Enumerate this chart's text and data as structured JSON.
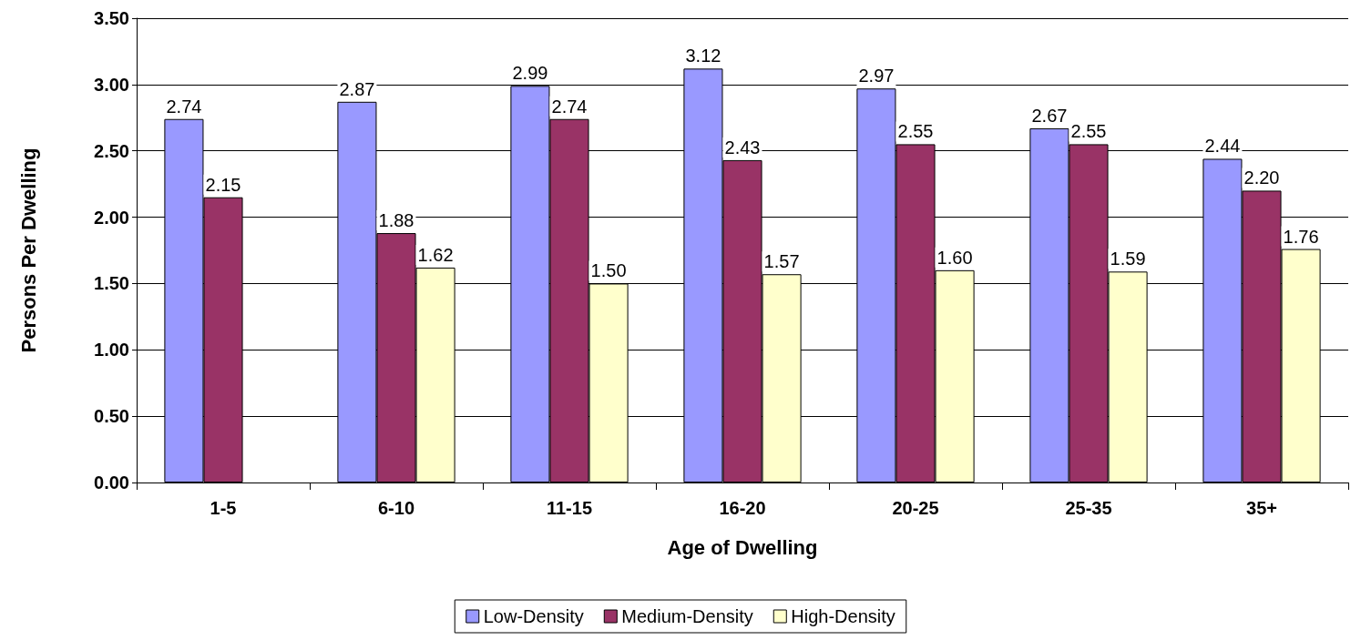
{
  "chart_data": {
    "type": "bar",
    "xlabel": "Age of Dwelling",
    "ylabel": "Persons Per Dwelling",
    "categories": [
      "1-5",
      "6-10",
      "11-15",
      "16-20",
      "20-25",
      "25-35",
      "35+"
    ],
    "series": [
      {
        "name": "Low-Density",
        "color": "#9999ff",
        "values": [
          2.74,
          2.87,
          2.99,
          3.12,
          2.97,
          2.67,
          2.44
        ],
        "value_labels": [
          "2.74",
          "2.87",
          "2.99",
          "3.12",
          "2.97",
          "2.67",
          "2.44"
        ]
      },
      {
        "name": "Medium-Density",
        "color": "#993366",
        "values": [
          2.15,
          1.88,
          2.74,
          2.43,
          2.55,
          2.55,
          2.2
        ],
        "value_labels": [
          "2.15",
          "1.88",
          "2.74",
          "2.43",
          "2.55",
          "2.55",
          "2.20"
        ]
      },
      {
        "name": "High-Density",
        "color": "#ffffcc",
        "values": [
          null,
          1.62,
          1.5,
          1.57,
          1.6,
          1.59,
          1.76
        ],
        "value_labels": [
          null,
          "1.62",
          "1.50",
          "1.57",
          "1.60",
          "1.59",
          "1.76"
        ]
      }
    ],
    "ylim": [
      0,
      3.5
    ],
    "yticks": [
      {
        "value": 0,
        "label": "0.00"
      },
      {
        "value": 0.5,
        "label": "0.50"
      },
      {
        "value": 1,
        "label": "1.00"
      },
      {
        "value": 1.5,
        "label": "1.50"
      },
      {
        "value": 2,
        "label": "2.00"
      },
      {
        "value": 2.5,
        "label": "2.50"
      },
      {
        "value": 3,
        "label": "3.00"
      },
      {
        "value": 3.5,
        "label": "3.50"
      }
    ],
    "grid": "y",
    "legend": "bottom"
  }
}
